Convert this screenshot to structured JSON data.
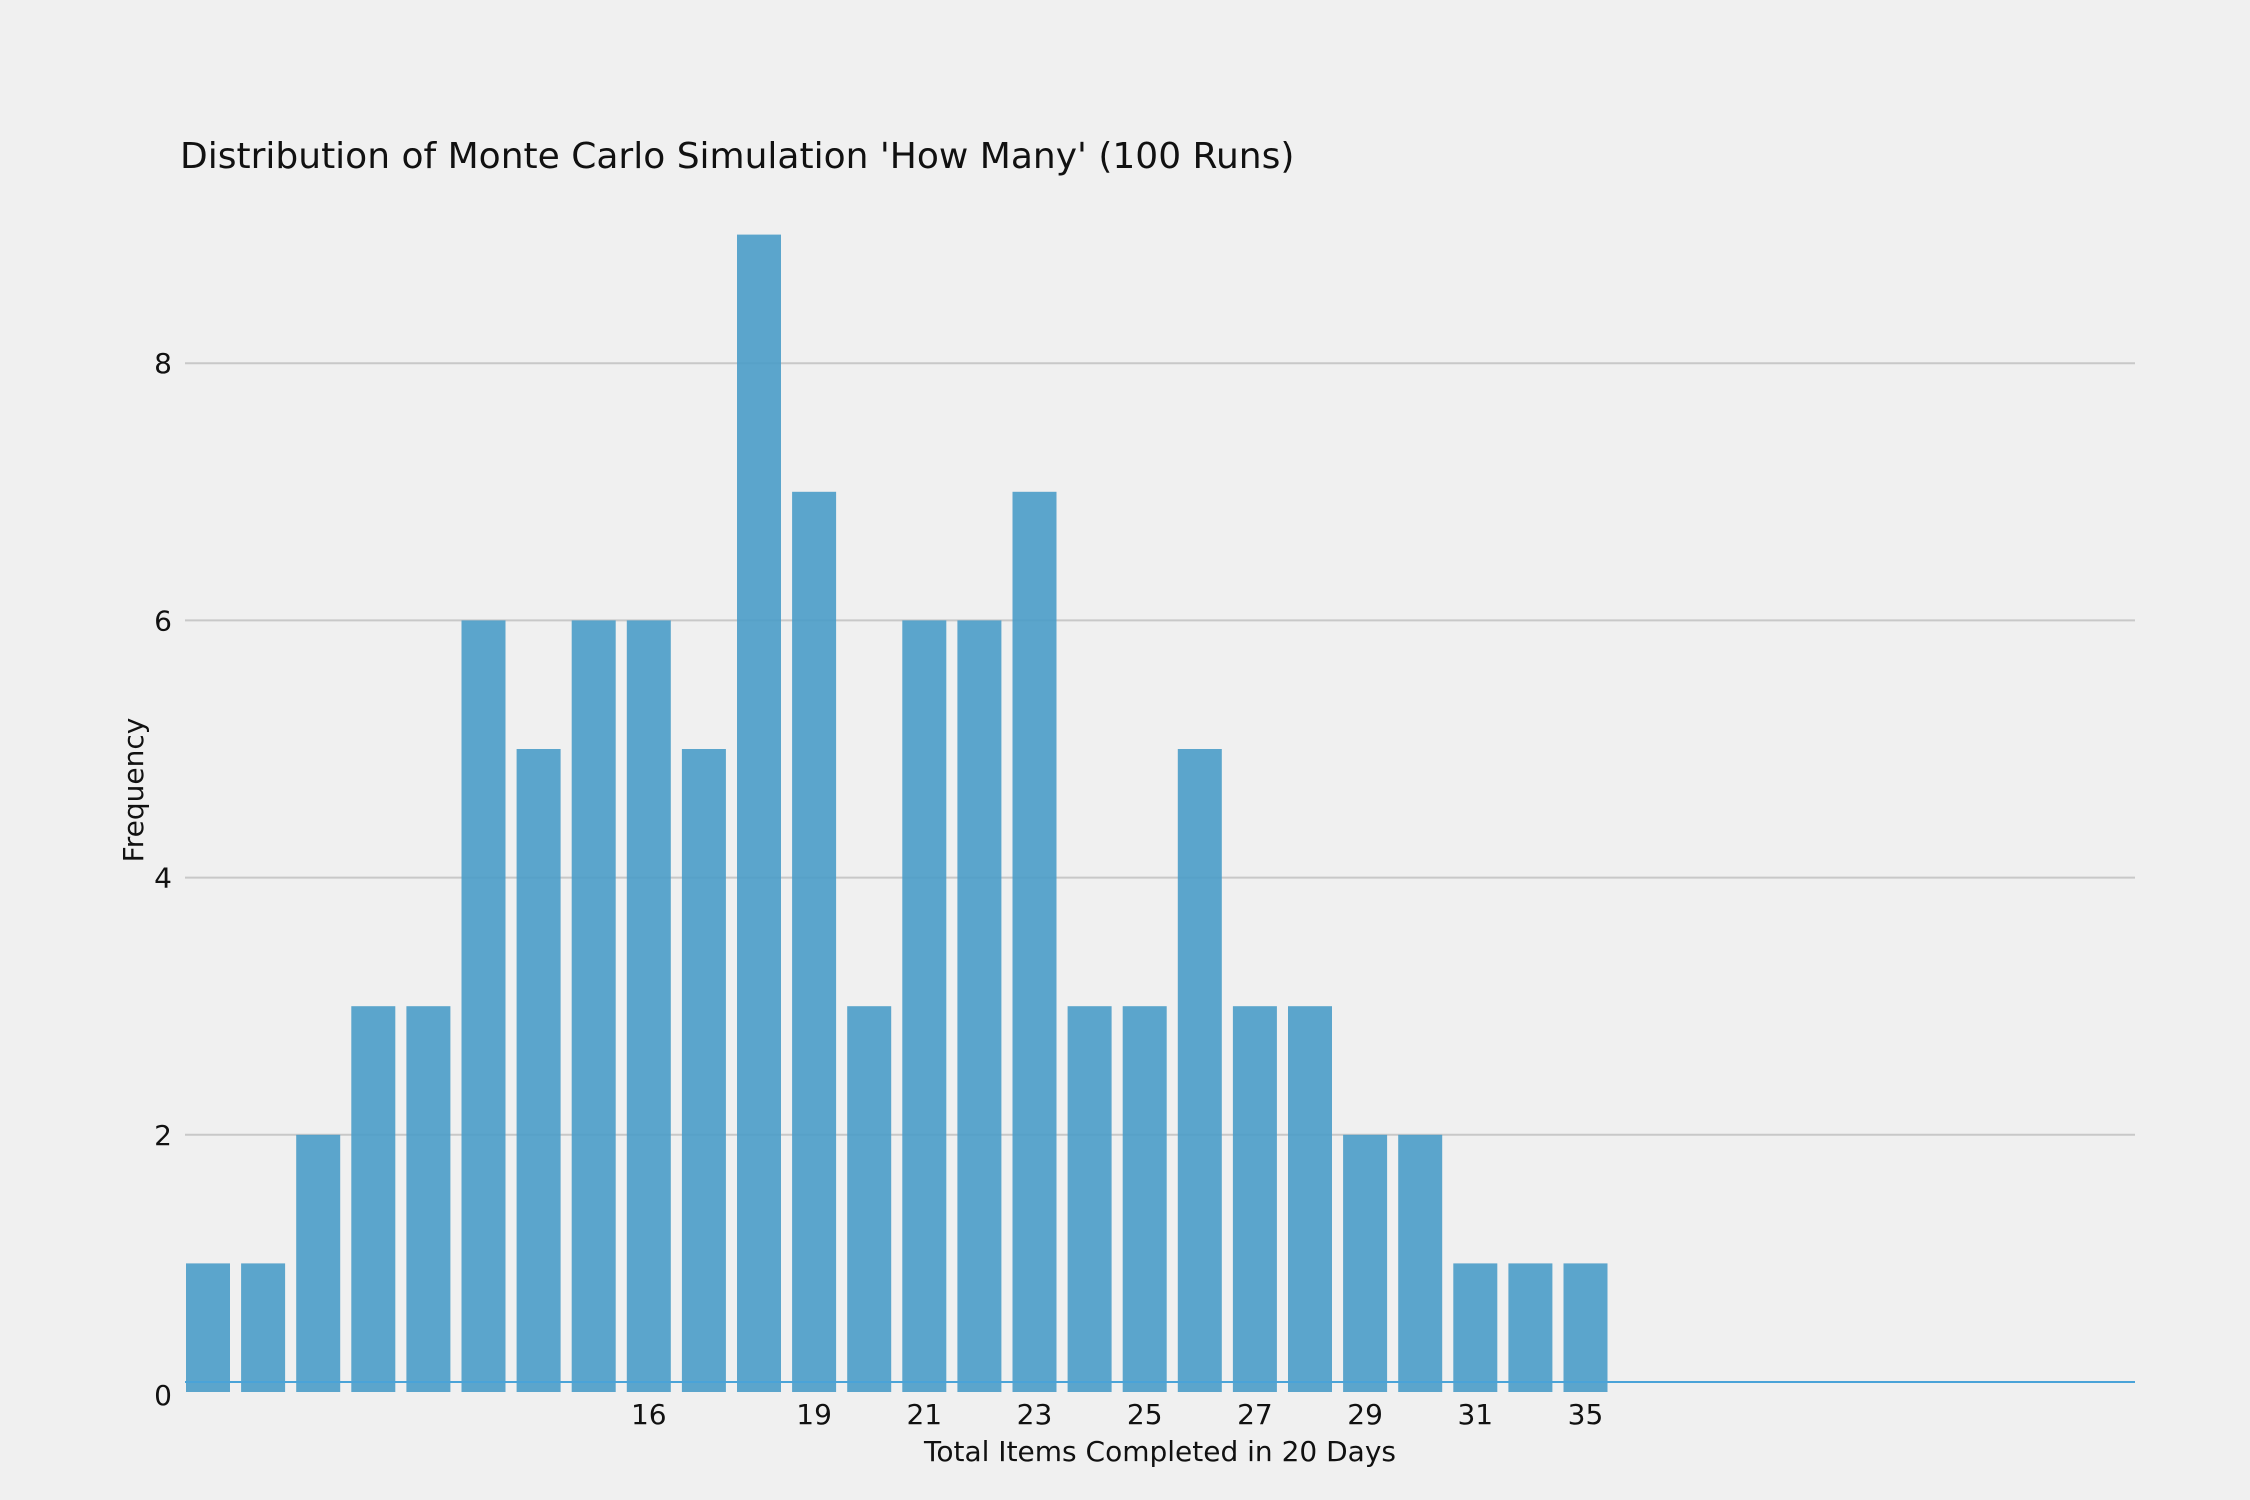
{
  "chart_data": {
    "type": "bar",
    "title": "Distribution of Monte Carlo Simulation 'How Many' (100 Runs)",
    "xlabel": "Total Items Completed in 20 Days",
    "ylabel": "Frequency",
    "ylim": [
      0,
      9
    ],
    "y_ticks": [
      0,
      2,
      4,
      6,
      8
    ],
    "x_tick_labels": [
      {
        "label": "16",
        "bar_index": 8
      },
      {
        "label": "19",
        "bar_index": 11
      },
      {
        "label": "21",
        "bar_index": 13
      },
      {
        "label": "23",
        "bar_index": 15
      },
      {
        "label": "25",
        "bar_index": 17
      },
      {
        "label": "27",
        "bar_index": 19
      },
      {
        "label": "29",
        "bar_index": 21
      },
      {
        "label": "31",
        "bar_index": 23
      },
      {
        "label": "35",
        "bar_index": 25
      }
    ],
    "values": [
      1,
      1,
      2,
      3,
      3,
      6,
      5,
      6,
      6,
      5,
      9,
      7,
      3,
      6,
      6,
      7,
      3,
      3,
      5,
      3,
      3,
      2,
      2,
      1,
      1,
      1
    ],
    "grid": "horizontal",
    "legend": "none",
    "colors": {
      "bar": "#4a9cc8",
      "background": "#f0f0f0",
      "grid": "#c8c8c8",
      "baseline": "#4aa3d8",
      "text": "#111111"
    }
  }
}
